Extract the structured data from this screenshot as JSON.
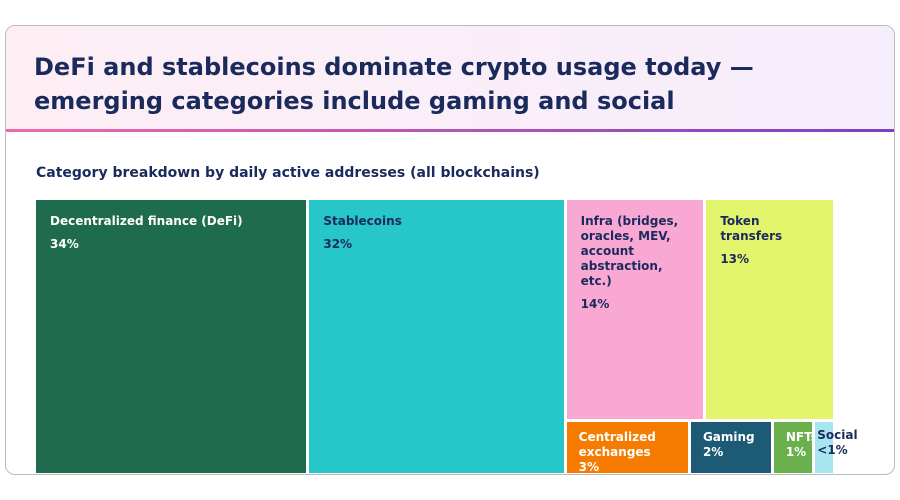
{
  "chart_data": {
    "type": "treemap",
    "title": "DeFi and stablecoins dominate crypto usage today — emerging categories include gaming and social",
    "subtitle": "Category breakdown by daily active addresses (all blockchains)",
    "categories": [
      "Decentralized finance (DeFi)",
      "Stablecoins",
      "Infra (bridges, oracles, MEV, account abstraction, etc.)",
      "Token transfers",
      "Centralized exchanges",
      "Gaming",
      "NFTs",
      "Social"
    ],
    "values": [
      34,
      32,
      14,
      13,
      3,
      2,
      1,
      0.5
    ],
    "value_labels": [
      "34%",
      "32%",
      "14%",
      "13%",
      "3%",
      "2%",
      "1%",
      "<1%"
    ],
    "colors": [
      "#1f6b4e",
      "#26c6c9",
      "#f9a8d4",
      "#e2f56c",
      "#f57c00",
      "#1c5a75",
      "#6ab04c",
      "#a8e6ef"
    ]
  }
}
